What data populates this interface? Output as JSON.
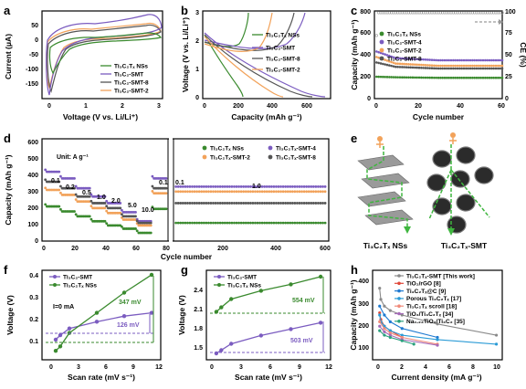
{
  "colors": {
    "green": "#3a8a2e",
    "purple": "#7b5cc0",
    "gray": "#555555",
    "orange": "#f2a25a",
    "lightgray": "#9a9a9a",
    "dash": "#7f7f7f"
  },
  "chart_data": [
    {
      "id": "a",
      "panel_label": "a",
      "type": "line",
      "xlabel": "Voltage (V vs. Li/Li⁺)",
      "ylabel": "Current (μA)",
      "xlim": [
        -0.2,
        3.2
      ],
      "ylim": [
        -160,
        80
      ],
      "xticks": [
        0,
        1,
        2,
        3
      ],
      "yticks": [
        -150,
        -100,
        -50,
        0,
        50
      ],
      "legend": [
        "Ti₃C₂Tₓ NSs",
        "Ti₃C₂-SMT",
        "Ti₃C₂-SMT-8",
        "Ti₃C₂-SMT-2"
      ]
    },
    {
      "id": "b",
      "panel_label": "b",
      "type": "line",
      "xlabel": "Capacity (mAh g⁻¹)",
      "ylabel": "Voltage (V vs. Li/Li⁺)",
      "xlim": [
        0,
        750
      ],
      "ylim": [
        0,
        3.1
      ],
      "xticks": [
        0,
        200,
        400,
        600
      ],
      "yticks": [
        0,
        1,
        2,
        3
      ],
      "legend": [
        "Ti₃C₂Tₓ NSs",
        "Ti₃C₂-SMT",
        "Ti₃C₂-SMT-8",
        "Ti₃C₂-SMT-2"
      ]
    },
    {
      "id": "c",
      "panel_label": "c",
      "type": "scatter",
      "xlabel": "Cycle number",
      "ylabel": "Capacity (mAh g⁻¹)",
      "y2label": "CE (%)",
      "xlim": [
        0,
        60
      ],
      "ylim": [
        0,
        800
      ],
      "y2lim": [
        0,
        100
      ],
      "xticks": [
        0,
        20,
        40,
        60
      ],
      "yticks": [
        0,
        200,
        400,
        600,
        800
      ],
      "y2ticks": [
        0,
        25,
        50,
        75,
        100
      ],
      "legend": [
        "Ti₃C₂Tₓ NSs",
        "Ti₃C₂-SMT-4",
        "Ti₃C₂-SMT-2",
        "Ti₃C₂-SMT-8"
      ],
      "series": [
        {
          "name": "Ti₃C₂Tₓ NSs",
          "values": [
            200,
            195,
            192,
            190,
            190,
            190,
            190
          ]
        },
        {
          "name": "Ti₃C₂-SMT-4",
          "values": [
            430,
            370,
            355,
            350,
            350,
            350,
            350
          ]
        },
        {
          "name": "Ti₃C₂-SMT-2",
          "values": [
            380,
            320,
            305,
            300,
            300,
            300,
            300
          ]
        },
        {
          "name": "Ti₃C₂-SMT-8",
          "values": [
            330,
            290,
            280,
            275,
            275,
            275,
            275
          ]
        }
      ],
      "x": [
        1,
        10,
        20,
        30,
        40,
        50,
        60
      ]
    },
    {
      "id": "d",
      "panel_label": "d",
      "type": "scatter",
      "xlabel": "Cycle number",
      "ylabel": "Capacity (mAh g⁻¹)",
      "unit_text": "Unit: A g⁻¹",
      "rate_labels": [
        "0.1",
        "0.2",
        "0.5",
        "1.0",
        "2.0",
        "5.0",
        "10.0",
        "0.1",
        "0.1",
        "1.0"
      ],
      "xticks": [
        0,
        20,
        40,
        60,
        80,
        200,
        400,
        600
      ],
      "yticks": [
        0,
        100,
        200,
        300,
        400,
        500,
        600
      ],
      "legend": [
        "Ti₃C₂Tₓ NSs",
        "Ti₃C₂Tₓ-SMT-2",
        "Ti₃C₂Tₓ-SMT-4",
        "Ti₃C₂Tₓ-SMT-8"
      ],
      "series": [
        {
          "name": "Ti₃C₂Tₓ NSs",
          "rate_steps": [
            210,
            180,
            150,
            120,
            95,
            75,
            50,
            195
          ],
          "long_cycle": 110
        },
        {
          "name": "Ti₃C₂Tₓ-SMT-2",
          "rate_steps": [
            310,
            280,
            240,
            200,
            170,
            130,
            95,
            290
          ],
          "long_cycle": 300
        },
        {
          "name": "Ti₃C₂Tₓ-SMT-4",
          "rate_steps": [
            420,
            380,
            320,
            270,
            230,
            175,
            120,
            380
          ],
          "long_cycle": 330
        },
        {
          "name": "Ti₃C₂Tₓ-SMT-8",
          "rate_steps": [
            360,
            320,
            270,
            230,
            200,
            150,
            110,
            320
          ],
          "long_cycle": 230
        }
      ]
    },
    {
      "id": "f",
      "panel_label": "f",
      "type": "line",
      "xlabel": "Scan rate (mV s⁻¹)",
      "ylabel": "Voltage (V)",
      "xlim": [
        -1,
        12
      ],
      "ylim": [
        0.05,
        0.45
      ],
      "xticks": [
        0,
        3,
        6,
        9,
        12
      ],
      "yticks": [
        0.1,
        0.2,
        0.3,
        0.4
      ],
      "note": "I=0 mA",
      "ann_green": "347 mV",
      "ann_purple": "126 mV",
      "x": [
        0.5,
        1,
        2,
        5,
        8,
        11
      ],
      "series": [
        {
          "name": "Ti₃C₂-SMT",
          "values": [
            0.14,
            0.16,
            0.19,
            0.22,
            0.245,
            0.26
          ]
        },
        {
          "name": "Ti₃C₂Tₓ NSs",
          "values": [
            0.09,
            0.11,
            0.17,
            0.26,
            0.35,
            0.43
          ]
        }
      ]
    },
    {
      "id": "g",
      "panel_label": "g",
      "type": "line",
      "xlabel": "Scan rate (mV s⁻¹)",
      "ylabel": "Voltage (V)",
      "xlim": [
        -0.5,
        12
      ],
      "ylim": [
        1.3,
        2.7
      ],
      "xticks": [
        0,
        3,
        6,
        9,
        12
      ],
      "yticks": [
        1.5,
        1.8,
        2.1,
        2.4
      ],
      "ann_green": "554 mV",
      "ann_purple": "503 mV",
      "x": [
        0.5,
        1,
        2,
        5,
        8,
        11
      ],
      "series": [
        {
          "name": "Ti₃C₂-SMT",
          "values": [
            1.4,
            1.45,
            1.55,
            1.68,
            1.78,
            1.88
          ]
        },
        {
          "name": "Ti₃C₂Tₓ NSs",
          "values": [
            2.05,
            2.12,
            2.25,
            2.38,
            2.48,
            2.6
          ]
        }
      ]
    },
    {
      "id": "h",
      "panel_label": "h",
      "type": "line",
      "xlabel": "Current density (mA g⁻¹)",
      "ylabel": "Capacity (mAh g⁻¹)",
      "xlim": [
        -0.5,
        10.5
      ],
      "ylim": [
        50,
        450
      ],
      "xticks": [
        0,
        2,
        4,
        6,
        8,
        10
      ],
      "yticks": [
        100,
        200,
        300,
        400
      ],
      "legend": [
        "Ti₃C₂Tₓ-SMT [This work]",
        "TiO₂/rGO [8]",
        "Ti₃C₂Tₓ@C [9]",
        "Porous Ti₃C₂Tₓ [17]",
        "Ti₃C₂Tₓ scroll [18]",
        "TiO₂/Ti₃C₂Tₓ [34]",
        "Na₀.₂₃TiO₂/Ti₃C₂ [35]"
      ]
    }
  ],
  "panel_e": {
    "label": "e",
    "left_caption": "Ti₃C₂Tₓ NSs",
    "right_caption": "Ti₃C₂Tₓ-SMT"
  }
}
